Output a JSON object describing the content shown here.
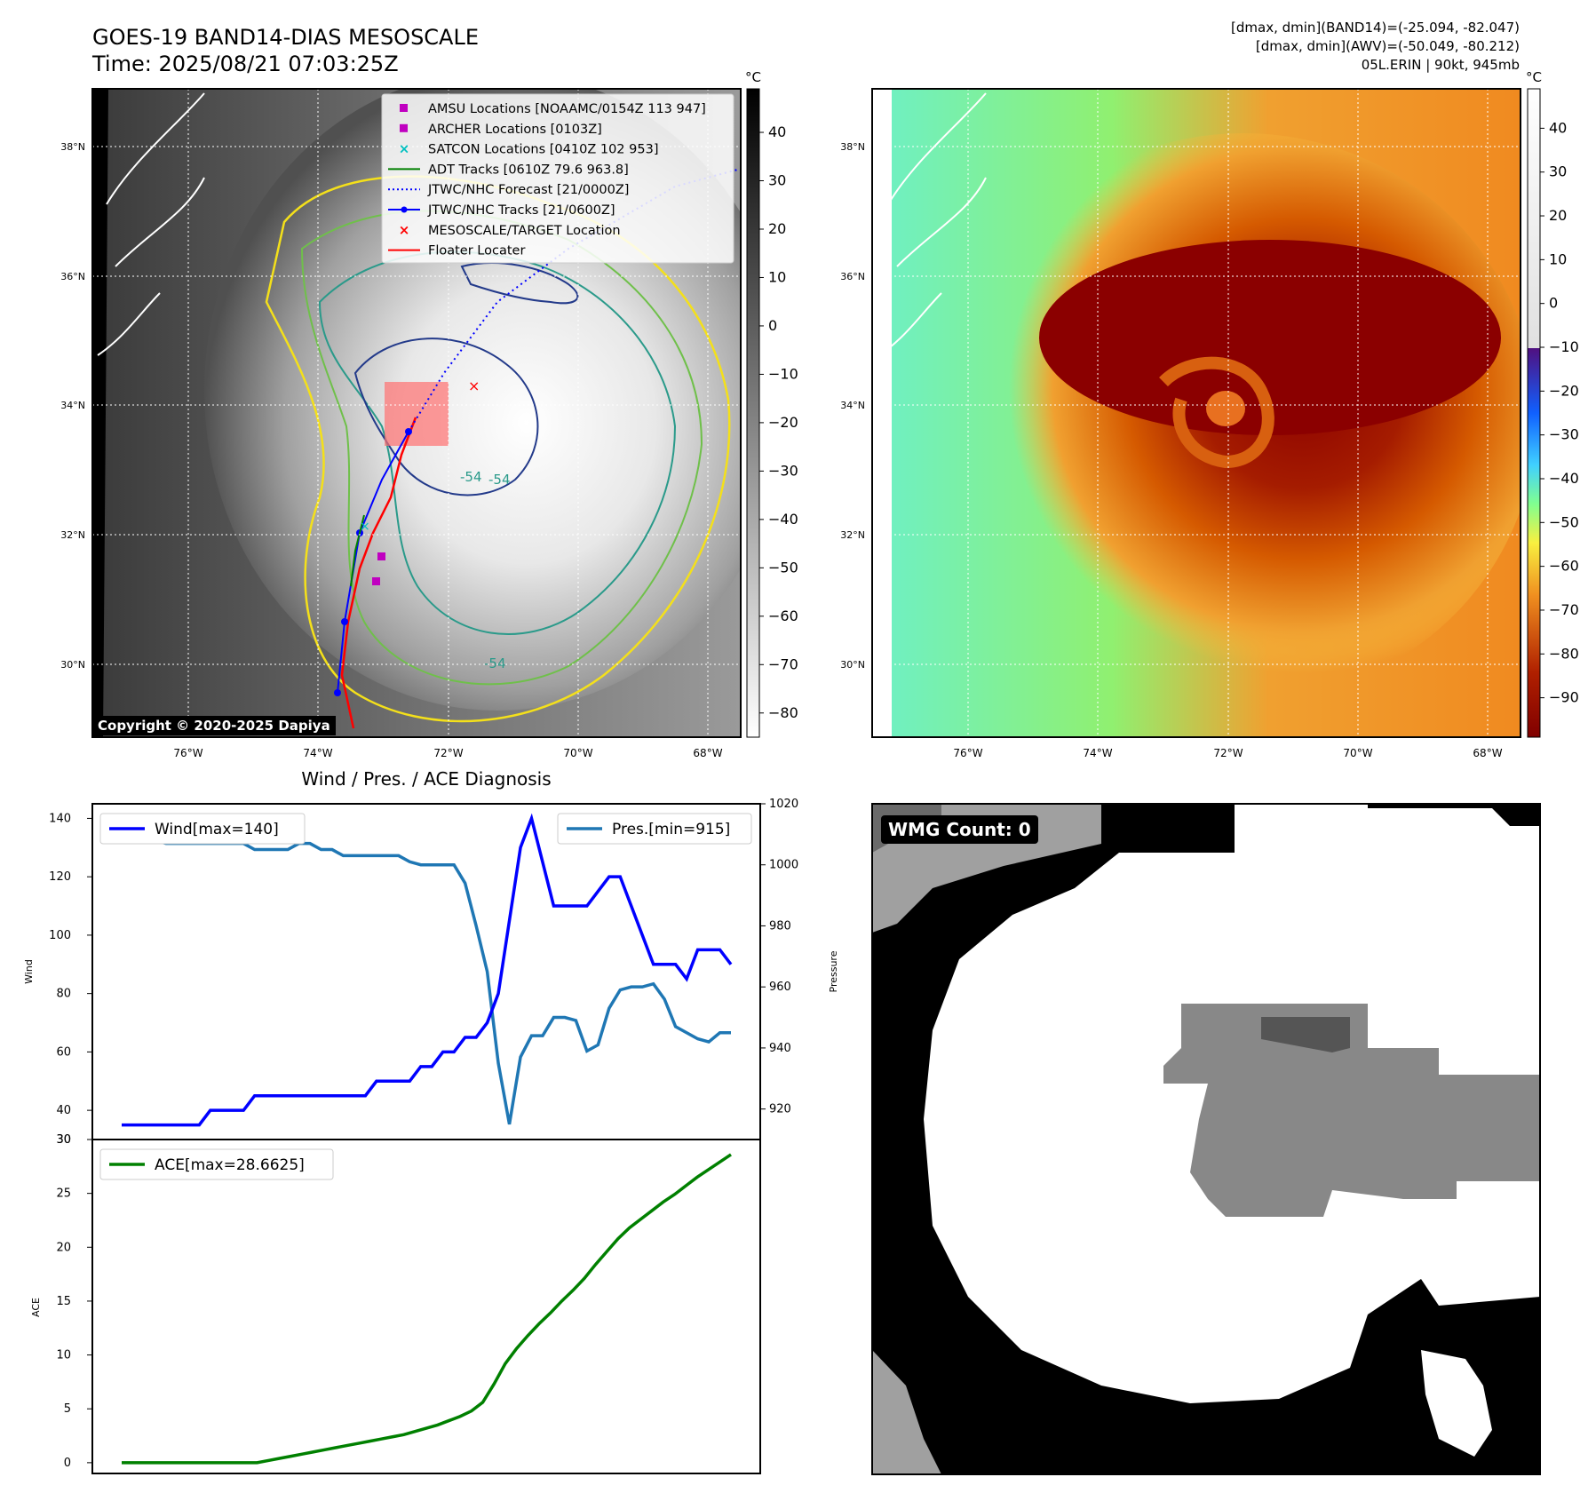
{
  "header": {
    "title_line1": "GOES-19 BAND14-DIAS MESOSCALE",
    "title_line2": "Time: 2025/08/21 07:03:25Z",
    "info_line1": "[dmax, dmin](BAND14)=(-25.094, -82.047)",
    "info_line2": "[dmax, dmin](AWV)=(-50.049, -80.212)",
    "info_line3": "05L.ERIN | 90kt, 945mb"
  },
  "map_axes": {
    "lat_labels": [
      "38°N",
      "36°N",
      "34°N",
      "32°N",
      "30°N"
    ],
    "lon_labels": [
      "76°W",
      "74°W",
      "72°W",
      "70°W",
      "68°W"
    ],
    "contour_label": "-54"
  },
  "ir_colorbar": {
    "unit": "°C",
    "ticks": [
      "40",
      "30",
      "20",
      "10",
      "0",
      "−10",
      "−20",
      "−30",
      "−40",
      "−50",
      "−60",
      "−70",
      "−80"
    ]
  },
  "wv_colorbar": {
    "unit": "°C",
    "ticks": [
      "40",
      "30",
      "20",
      "10",
      "0",
      "−10",
      "−20",
      "−30",
      "−40",
      "−50",
      "−60",
      "−70",
      "−80",
      "−90"
    ]
  },
  "legend": {
    "items": [
      {
        "label": "AMSU Locations [NOAAMC/0154Z 113 947]",
        "marker": "square",
        "color": "#c000c0"
      },
      {
        "label": "ARCHER Locations [0103Z]",
        "marker": "square",
        "color": "#c000c0"
      },
      {
        "label": "SATCON Locations [0410Z 102 953]",
        "marker": "x",
        "color": "#00c0c0"
      },
      {
        "label": "ADT Tracks [0610Z 79.6 963.8]",
        "marker": "line",
        "color": "#008000"
      },
      {
        "label": "JTWC/NHC Forecast [21/0000Z]",
        "marker": "dotted",
        "color": "#0000ff"
      },
      {
        "label": "JTWC/NHC Tracks [21/0600Z]",
        "marker": "line-dot",
        "color": "#0000ff"
      },
      {
        "label": "MESOSCALE/TARGET Location",
        "marker": "x",
        "color": "#ff0000"
      },
      {
        "label": "Floater Locater",
        "marker": "line",
        "color": "#ff0000"
      }
    ]
  },
  "copyright": "Copyright © 2020-2025 Dapiya",
  "wmg_label": "WMG Count: 0",
  "colors": {
    "wind": "#0000ff",
    "pressure": "#1f77b4",
    "ace": "#008000"
  },
  "chart_data": [
    {
      "type": "line",
      "title": "Wind / Pres. / ACE Diagnosis",
      "ylabel": "Wind",
      "ylabel_right": "Pressure",
      "ylim": [
        30,
        145
      ],
      "ylim_right": [
        910,
        1020
      ],
      "yticks": [
        "140",
        "120",
        "100",
        "80",
        "60",
        "40",
        "30"
      ],
      "yticks_right": [
        "1020",
        "1000",
        "980",
        "960",
        "940",
        "920"
      ],
      "series": [
        {
          "name": "Wind[max=140]",
          "axis": "left",
          "values": [
            35,
            35,
            35,
            35,
            35,
            35,
            35,
            35,
            40,
            40,
            40,
            40,
            45,
            45,
            45,
            45,
            45,
            45,
            45,
            45,
            45,
            45,
            45,
            50,
            50,
            50,
            50,
            55,
            55,
            60,
            60,
            65,
            65,
            70,
            80,
            105,
            130,
            140,
            125,
            110,
            110,
            110,
            110,
            115,
            120,
            120,
            110,
            100,
            90,
            90,
            90,
            85,
            95,
            95,
            95,
            90
          ]
        },
        {
          "name": "Pres.[min=915]",
          "axis": "right",
          "values": [
            1015,
            1015,
            1009,
            1008,
            1007,
            1007,
            1007,
            1007,
            1007,
            1007,
            1007,
            1007,
            1005,
            1005,
            1005,
            1005,
            1007,
            1007,
            1005,
            1005,
            1003,
            1003,
            1003,
            1003,
            1003,
            1003,
            1001,
            1000,
            1000,
            1000,
            1000,
            994,
            980,
            965,
            935,
            915,
            937,
            944,
            944,
            950,
            950,
            949,
            939,
            941,
            953,
            959,
            960,
            960,
            961,
            956,
            947,
            945,
            943,
            942,
            945,
            945
          ]
        }
      ]
    },
    {
      "type": "line",
      "ylabel": "ACE",
      "ylim": [
        -1,
        30
      ],
      "yticks": [
        "30",
        "25",
        "20",
        "15",
        "10",
        "5",
        "0"
      ],
      "series": [
        {
          "name": "ACE[max=28.6625]",
          "values": [
            0,
            0,
            0,
            0,
            0,
            0,
            0,
            0,
            0,
            0,
            0,
            0,
            0,
            0.2,
            0.4,
            0.6,
            0.8,
            1.0,
            1.2,
            1.4,
            1.6,
            1.8,
            2.0,
            2.2,
            2.4,
            2.6,
            2.9,
            3.2,
            3.5,
            3.9,
            4.3,
            4.8,
            5.6,
            7.3,
            9.2,
            10.6,
            11.8,
            12.9,
            13.9,
            15.0,
            16.0,
            17.1,
            18.4,
            19.6,
            20.8,
            21.8,
            22.6,
            23.4,
            24.2,
            24.9,
            25.7,
            26.5,
            27.2,
            27.9,
            28.6
          ]
        }
      ]
    }
  ]
}
